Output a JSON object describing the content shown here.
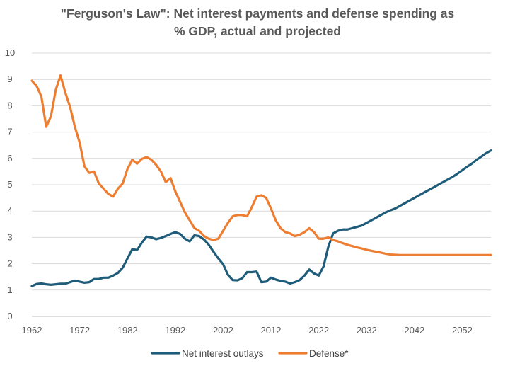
{
  "chart_data": {
    "type": "line",
    "title_line1": "\"Ferguson's Law\": Net interest payments and defense spending as",
    "title_line2": "% GDP, actual and projected",
    "xlabel": "",
    "ylabel": "",
    "xlim": [
      1962,
      2054
    ],
    "ylim": [
      0,
      10
    ],
    "x_ticks": [
      1962,
      1972,
      1982,
      1992,
      2002,
      2012,
      2022,
      2032,
      2042,
      2052
    ],
    "y_ticks": [
      0,
      1,
      2,
      3,
      4,
      5,
      6,
      7,
      8,
      9,
      10
    ],
    "grid": "horizontal",
    "legend_position": "bottom",
    "series": [
      {
        "name": "Net interest outlays",
        "color": "#1F5C7A",
        "points": [
          [
            1962,
            1.15
          ],
          [
            1963,
            1.23
          ],
          [
            1964,
            1.25
          ],
          [
            1965,
            1.22
          ],
          [
            1966,
            1.2
          ],
          [
            1967,
            1.22
          ],
          [
            1968,
            1.24
          ],
          [
            1969,
            1.24
          ],
          [
            1970,
            1.3
          ],
          [
            1971,
            1.36
          ],
          [
            1972,
            1.32
          ],
          [
            1973,
            1.28
          ],
          [
            1974,
            1.3
          ],
          [
            1975,
            1.42
          ],
          [
            1976,
            1.42
          ],
          [
            1977,
            1.47
          ],
          [
            1978,
            1.47
          ],
          [
            1979,
            1.55
          ],
          [
            1980,
            1.65
          ],
          [
            1981,
            1.85
          ],
          [
            1982,
            2.2
          ],
          [
            1983,
            2.55
          ],
          [
            1984,
            2.52
          ],
          [
            1985,
            2.8
          ],
          [
            1986,
            3.03
          ],
          [
            1987,
            3.0
          ],
          [
            1988,
            2.93
          ],
          [
            1989,
            2.98
          ],
          [
            1990,
            3.05
          ],
          [
            1991,
            3.13
          ],
          [
            1992,
            3.2
          ],
          [
            1993,
            3.13
          ],
          [
            1994,
            2.95
          ],
          [
            1995,
            2.85
          ],
          [
            1996,
            3.08
          ],
          [
            1997,
            3.05
          ],
          [
            1998,
            2.92
          ],
          [
            1999,
            2.72
          ],
          [
            2000,
            2.45
          ],
          [
            2001,
            2.2
          ],
          [
            2002,
            1.98
          ],
          [
            2003,
            1.58
          ],
          [
            2004,
            1.38
          ],
          [
            2005,
            1.37
          ],
          [
            2006,
            1.45
          ],
          [
            2007,
            1.68
          ],
          [
            2008,
            1.68
          ],
          [
            2009,
            1.7
          ],
          [
            2010,
            1.3
          ],
          [
            2011,
            1.32
          ],
          [
            2012,
            1.47
          ],
          [
            2013,
            1.4
          ],
          [
            2014,
            1.35
          ],
          [
            2015,
            1.32
          ],
          [
            2016,
            1.25
          ],
          [
            2017,
            1.3
          ],
          [
            2018,
            1.38
          ],
          [
            2019,
            1.55
          ],
          [
            2020,
            1.78
          ],
          [
            2021,
            1.63
          ],
          [
            2022,
            1.55
          ],
          [
            2023,
            1.9
          ],
          [
            2024,
            2.65
          ],
          [
            2025,
            3.15
          ],
          [
            2026,
            3.25
          ],
          [
            2027,
            3.3
          ],
          [
            2028,
            3.3
          ],
          [
            2029,
            3.35
          ],
          [
            2030,
            3.4
          ],
          [
            2031,
            3.45
          ],
          [
            2032,
            3.55
          ],
          [
            2033,
            3.65
          ],
          [
            2034,
            3.75
          ],
          [
            2035,
            3.85
          ],
          [
            2036,
            3.95
          ],
          [
            2037,
            4.03
          ],
          [
            2038,
            4.1
          ],
          [
            2039,
            4.2
          ],
          [
            2040,
            4.3
          ],
          [
            2041,
            4.4
          ],
          [
            2042,
            4.5
          ],
          [
            2043,
            4.6
          ],
          [
            2044,
            4.7
          ],
          [
            2045,
            4.8
          ],
          [
            2046,
            4.9
          ],
          [
            2047,
            5.0
          ],
          [
            2048,
            5.1
          ],
          [
            2049,
            5.2
          ],
          [
            2050,
            5.3
          ],
          [
            2051,
            5.42
          ],
          [
            2052,
            5.55
          ],
          [
            2053,
            5.68
          ],
          [
            2054,
            5.8
          ],
          [
            2055,
            5.95
          ],
          [
            2056,
            6.07
          ],
          [
            2057,
            6.2
          ],
          [
            2058,
            6.3
          ]
        ]
      },
      {
        "name": "Defense*",
        "color": "#ED7D31",
        "points": [
          [
            1962,
            8.95
          ],
          [
            1963,
            8.75
          ],
          [
            1964,
            8.35
          ],
          [
            1965,
            7.2
          ],
          [
            1966,
            7.6
          ],
          [
            1967,
            8.6
          ],
          [
            1968,
            9.15
          ],
          [
            1969,
            8.5
          ],
          [
            1970,
            7.95
          ],
          [
            1971,
            7.2
          ],
          [
            1972,
            6.6
          ],
          [
            1973,
            5.7
          ],
          [
            1974,
            5.45
          ],
          [
            1975,
            5.5
          ],
          [
            1976,
            5.05
          ],
          [
            1977,
            4.85
          ],
          [
            1978,
            4.65
          ],
          [
            1979,
            4.55
          ],
          [
            1980,
            4.85
          ],
          [
            1981,
            5.05
          ],
          [
            1982,
            5.6
          ],
          [
            1983,
            5.95
          ],
          [
            1984,
            5.8
          ],
          [
            1985,
            5.98
          ],
          [
            1986,
            6.05
          ],
          [
            1987,
            5.95
          ],
          [
            1988,
            5.75
          ],
          [
            1989,
            5.5
          ],
          [
            1990,
            5.1
          ],
          [
            1991,
            5.25
          ],
          [
            1992,
            4.75
          ],
          [
            1993,
            4.35
          ],
          [
            1994,
            3.95
          ],
          [
            1995,
            3.65
          ],
          [
            1996,
            3.35
          ],
          [
            1997,
            3.25
          ],
          [
            1998,
            3.05
          ],
          [
            1999,
            2.95
          ],
          [
            2000,
            2.9
          ],
          [
            2001,
            2.95
          ],
          [
            2002,
            3.25
          ],
          [
            2003,
            3.55
          ],
          [
            2004,
            3.8
          ],
          [
            2005,
            3.85
          ],
          [
            2006,
            3.85
          ],
          [
            2007,
            3.8
          ],
          [
            2008,
            4.15
          ],
          [
            2009,
            4.55
          ],
          [
            2010,
            4.6
          ],
          [
            2011,
            4.5
          ],
          [
            2012,
            4.1
          ],
          [
            2013,
            3.65
          ],
          [
            2014,
            3.35
          ],
          [
            2015,
            3.2
          ],
          [
            2016,
            3.15
          ],
          [
            2017,
            3.05
          ],
          [
            2018,
            3.1
          ],
          [
            2019,
            3.2
          ],
          [
            2020,
            3.35
          ],
          [
            2021,
            3.2
          ],
          [
            2022,
            2.95
          ],
          [
            2023,
            2.95
          ],
          [
            2024,
            3.0
          ],
          [
            2025,
            2.9
          ],
          [
            2026,
            2.85
          ],
          [
            2027,
            2.78
          ],
          [
            2028,
            2.72
          ],
          [
            2029,
            2.67
          ],
          [
            2030,
            2.62
          ],
          [
            2031,
            2.58
          ],
          [
            2032,
            2.53
          ],
          [
            2033,
            2.49
          ],
          [
            2034,
            2.45
          ],
          [
            2035,
            2.42
          ],
          [
            2036,
            2.38
          ],
          [
            2037,
            2.35
          ],
          [
            2038,
            2.34
          ],
          [
            2039,
            2.33
          ],
          [
            2040,
            2.33
          ],
          [
            2041,
            2.33
          ],
          [
            2042,
            2.33
          ],
          [
            2043,
            2.33
          ],
          [
            2044,
            2.33
          ],
          [
            2045,
            2.33
          ],
          [
            2046,
            2.33
          ],
          [
            2047,
            2.33
          ],
          [
            2048,
            2.33
          ],
          [
            2049,
            2.33
          ],
          [
            2050,
            2.33
          ],
          [
            2051,
            2.33
          ],
          [
            2052,
            2.33
          ],
          [
            2053,
            2.33
          ],
          [
            2054,
            2.33
          ],
          [
            2055,
            2.33
          ],
          [
            2056,
            2.33
          ],
          [
            2057,
            2.33
          ],
          [
            2058,
            2.33
          ]
        ]
      }
    ]
  }
}
